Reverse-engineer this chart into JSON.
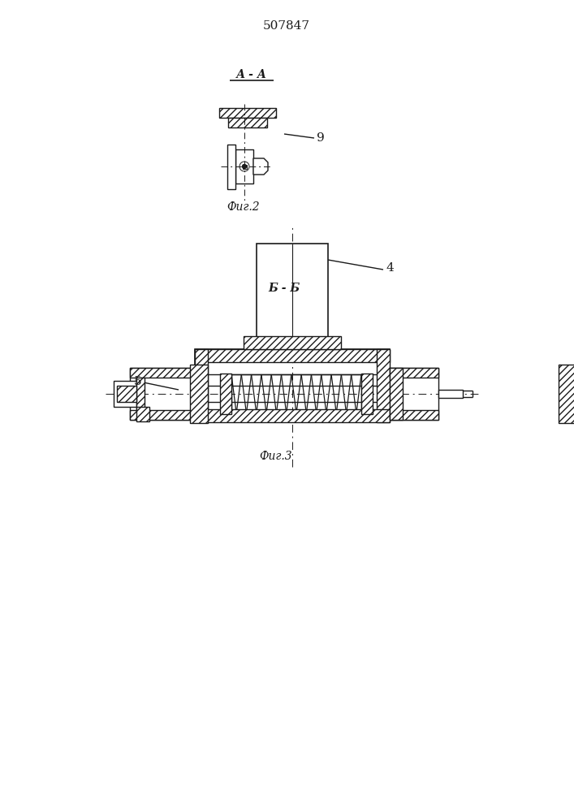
{
  "title": "507847",
  "title_fontsize": 11,
  "fig2_label": "А - А",
  "fig2_caption": "Фиг.2",
  "fig3_label": "Б - Б",
  "fig3_caption": "Фиг.3",
  "label_9": "9",
  "label_4": "4",
  "label_5": "5",
  "bg_color": "#ffffff",
  "line_color": "#1a1a1a"
}
